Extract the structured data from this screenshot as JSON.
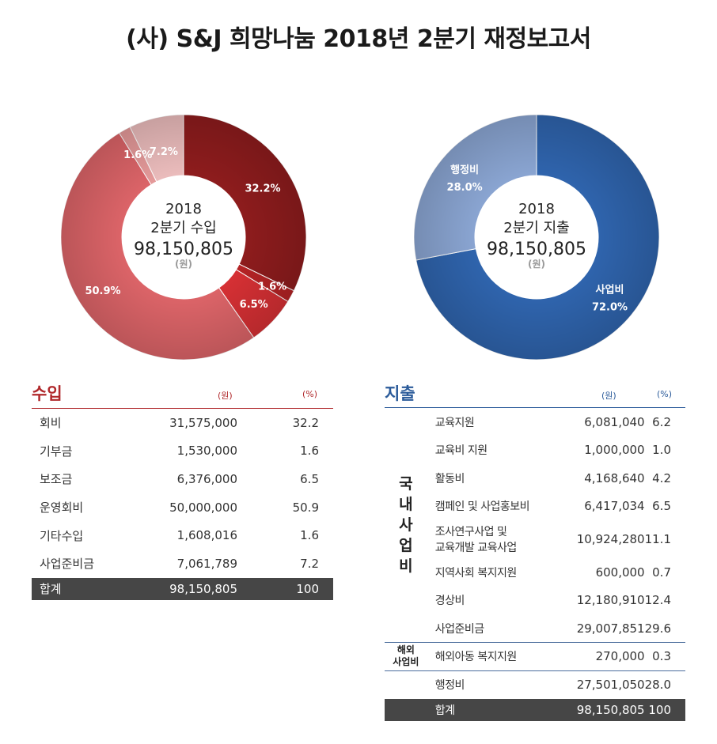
{
  "title": "(사) S&J 희망나눔 2018년 2분기 재정보고서",
  "colors": {
    "income_accent": "#b0282b",
    "expense_accent": "#2b5b9a",
    "total_bg": "#464646"
  },
  "chart_data": [
    {
      "type": "pie",
      "name": "income",
      "center": {
        "line1": "2018",
        "line2": "2분기 수입",
        "total": "98,150,805",
        "unit": "(원)"
      },
      "slices": [
        {
          "label": "32.2%",
          "value": 32.2,
          "color": "#8e1c1d"
        },
        {
          "label": "1.6%",
          "value": 1.6,
          "color": "#b52325"
        },
        {
          "label": "6.5%",
          "value": 6.5,
          "color": "#d63034"
        },
        {
          "label": "50.9%",
          "value": 50.9,
          "color": "#dc6468"
        },
        {
          "label": "1.6%",
          "value": 1.6,
          "color": "#e59a9a"
        },
        {
          "label": "7.2%",
          "value": 7.2,
          "color": "#ebbcbc"
        }
      ]
    },
    {
      "type": "pie",
      "name": "expense",
      "center": {
        "line1": "2018",
        "line2": "2분기 지출",
        "total": "98,150,805",
        "unit": "(원)"
      },
      "slices": [
        {
          "name": "사업비",
          "label": "72.0%",
          "value": 72.0,
          "color": "#2f64ad"
        },
        {
          "name": "행정비",
          "label": "28.0%",
          "value": 28.0,
          "color": "#8aa5d2"
        }
      ]
    }
  ],
  "income_table": {
    "title": "수입",
    "unit_amount": "(원)",
    "unit_percent": "(%)",
    "rows": [
      {
        "label": "회비",
        "amount": "31,575,000",
        "percent": "32.2"
      },
      {
        "label": "기부금",
        "amount": "1,530,000",
        "percent": "1.6"
      },
      {
        "label": "보조금",
        "amount": "6,376,000",
        "percent": "6.5"
      },
      {
        "label": "운영회비",
        "amount": "50,000,000",
        "percent": "50.9"
      },
      {
        "label": "기타수입",
        "amount": "1,608,016",
        "percent": "1.6"
      },
      {
        "label": "사업준비금",
        "amount": "7,061,789",
        "percent": "7.2"
      }
    ],
    "total": {
      "label": "합계",
      "amount": "98,150,805",
      "percent": "100"
    }
  },
  "expense_table": {
    "title": "지출",
    "unit_amount": "(원)",
    "unit_percent": "(%)",
    "domestic_group": "국내사업비",
    "overseas_group_line1": "해외",
    "overseas_group_line2": "사업비",
    "domestic_rows": [
      {
        "label": "교육지원",
        "amount": "6,081,040",
        "percent": "6.2"
      },
      {
        "label": "교육비 지원",
        "amount": "1,000,000",
        "percent": "1.0"
      },
      {
        "label": "활동비",
        "amount": "4,168,640",
        "percent": "4.2"
      },
      {
        "label": "캠페인 및 사업홍보비",
        "amount": "6,417,034",
        "percent": "6.5"
      },
      {
        "label": "조사연구사업 및",
        "label2": "교육개발 교육사업",
        "amount": "10,924,280",
        "percent": "11.1"
      },
      {
        "label": "지역사회 복지지원",
        "amount": "600,000",
        "percent": "0.7"
      },
      {
        "label": "경상비",
        "amount": "12,180,910",
        "percent": "12.4"
      },
      {
        "label": "사업준비금",
        "amount": "29,007,851",
        "percent": "29.6"
      }
    ],
    "overseas_row": {
      "label": "해외아동 복지지원",
      "amount": "270,000",
      "percent": "0.3"
    },
    "admin_row": {
      "label": "행정비",
      "amount": "27,501,050",
      "percent": "28.0"
    },
    "total": {
      "label": "합계",
      "amount": "98,150,805",
      "percent": "100"
    }
  }
}
